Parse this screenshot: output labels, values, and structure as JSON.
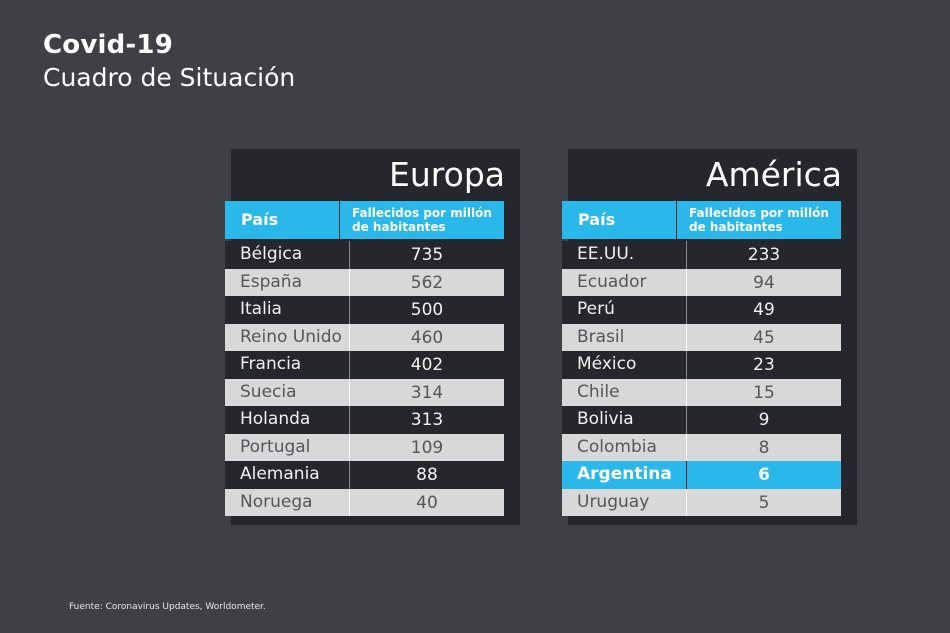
{
  "title": "Covid-19",
  "subtitle": "Cuadro de Situación",
  "source": "Fuente: Coronavirus Updates, Worldometer.",
  "colors": {
    "background": "#3f4046",
    "panel": "#26272c",
    "accent": "#2ab8ea",
    "light_row": "#d8d8da"
  },
  "tables": {
    "europa": {
      "title": "Europa",
      "col_country": "País",
      "col_value": "Fallecidos por millón de habitantes",
      "rows": [
        {
          "country": "Bélgica",
          "value": "735"
        },
        {
          "country": "España",
          "value": "562"
        },
        {
          "country": "Italia",
          "value": "500"
        },
        {
          "country": "Reino Unido",
          "value": "460"
        },
        {
          "country": "Francia",
          "value": "402"
        },
        {
          "country": "Suecia",
          "value": "314"
        },
        {
          "country": "Holanda",
          "value": "313"
        },
        {
          "country": "Portugal",
          "value": "109"
        },
        {
          "country": "Alemania",
          "value": "88"
        },
        {
          "country": "Noruega",
          "value": "40"
        }
      ]
    },
    "america": {
      "title": "América",
      "col_country": "País",
      "col_value": "Fallecidos por millón de habitantes",
      "rows": [
        {
          "country": "EE.UU.",
          "value": "233"
        },
        {
          "country": "Ecuador",
          "value": "94"
        },
        {
          "country": "Perú",
          "value": "49"
        },
        {
          "country": "Brasil",
          "value": "45"
        },
        {
          "country": "México",
          "value": "23"
        },
        {
          "country": "Chile",
          "value": "15"
        },
        {
          "country": "Bolivia",
          "value": "9"
        },
        {
          "country": "Colombia",
          "value": "8"
        },
        {
          "country": "Argentina",
          "value": "6",
          "highlight": true
        },
        {
          "country": "Uruguay",
          "value": "5"
        }
      ]
    }
  },
  "chart_data": [
    {
      "type": "table",
      "title": "Europa",
      "columns": [
        "País",
        "Fallecidos por millón de habitantes"
      ],
      "categories": [
        "Bélgica",
        "España",
        "Italia",
        "Reino Unido",
        "Francia",
        "Suecia",
        "Holanda",
        "Portugal",
        "Alemania",
        "Noruega"
      ],
      "values": [
        735,
        562,
        500,
        460,
        402,
        314,
        313,
        109,
        88,
        40
      ]
    },
    {
      "type": "table",
      "title": "América",
      "columns": [
        "País",
        "Fallecidos por millón de habitantes"
      ],
      "categories": [
        "EE.UU.",
        "Ecuador",
        "Perú",
        "Brasil",
        "México",
        "Chile",
        "Bolivia",
        "Colombia",
        "Argentina",
        "Uruguay"
      ],
      "values": [
        233,
        94,
        49,
        45,
        23,
        15,
        9,
        8,
        6,
        5
      ],
      "highlighted": "Argentina"
    }
  ]
}
